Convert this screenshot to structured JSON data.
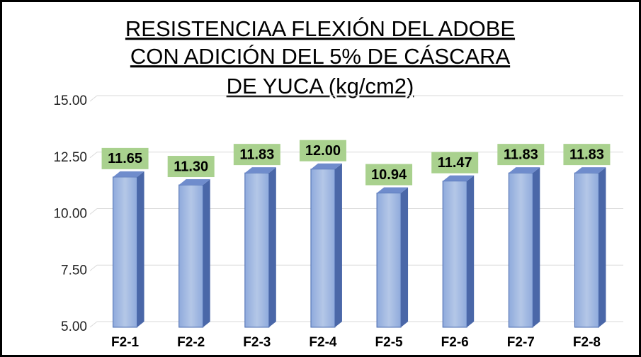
{
  "chart_data": {
    "type": "bar",
    "title": [
      "RESISTENCIAA FLEXIÓN DEL ADOBE",
      "CON ADICIÓN DEL  5% DE CÁSCARA",
      "DE YUCA (kg/cm2)"
    ],
    "categories": [
      "F2-1",
      "F2-2",
      "F2-3",
      "F2-4",
      "F2-5",
      "F2-6",
      "F2-7",
      "F2-8"
    ],
    "values": [
      11.65,
      11.3,
      11.83,
      12.0,
      10.94,
      11.47,
      11.83,
      11.83
    ],
    "value_labels": [
      "11.65",
      "11.30",
      "11.83",
      "12.00",
      "10.94",
      "11.47",
      "11.83",
      "11.83"
    ],
    "color": "#8faadc",
    "ylim": [
      5,
      15
    ],
    "yticks": [
      {
        "value": 5,
        "label": "5.00"
      },
      {
        "value": 7.5,
        "label": "7.50"
      },
      {
        "value": 10,
        "label": "10.00"
      },
      {
        "value": 12.5,
        "label": "12.50"
      },
      {
        "value": 15,
        "label": "15.00"
      }
    ],
    "grid": true
  }
}
